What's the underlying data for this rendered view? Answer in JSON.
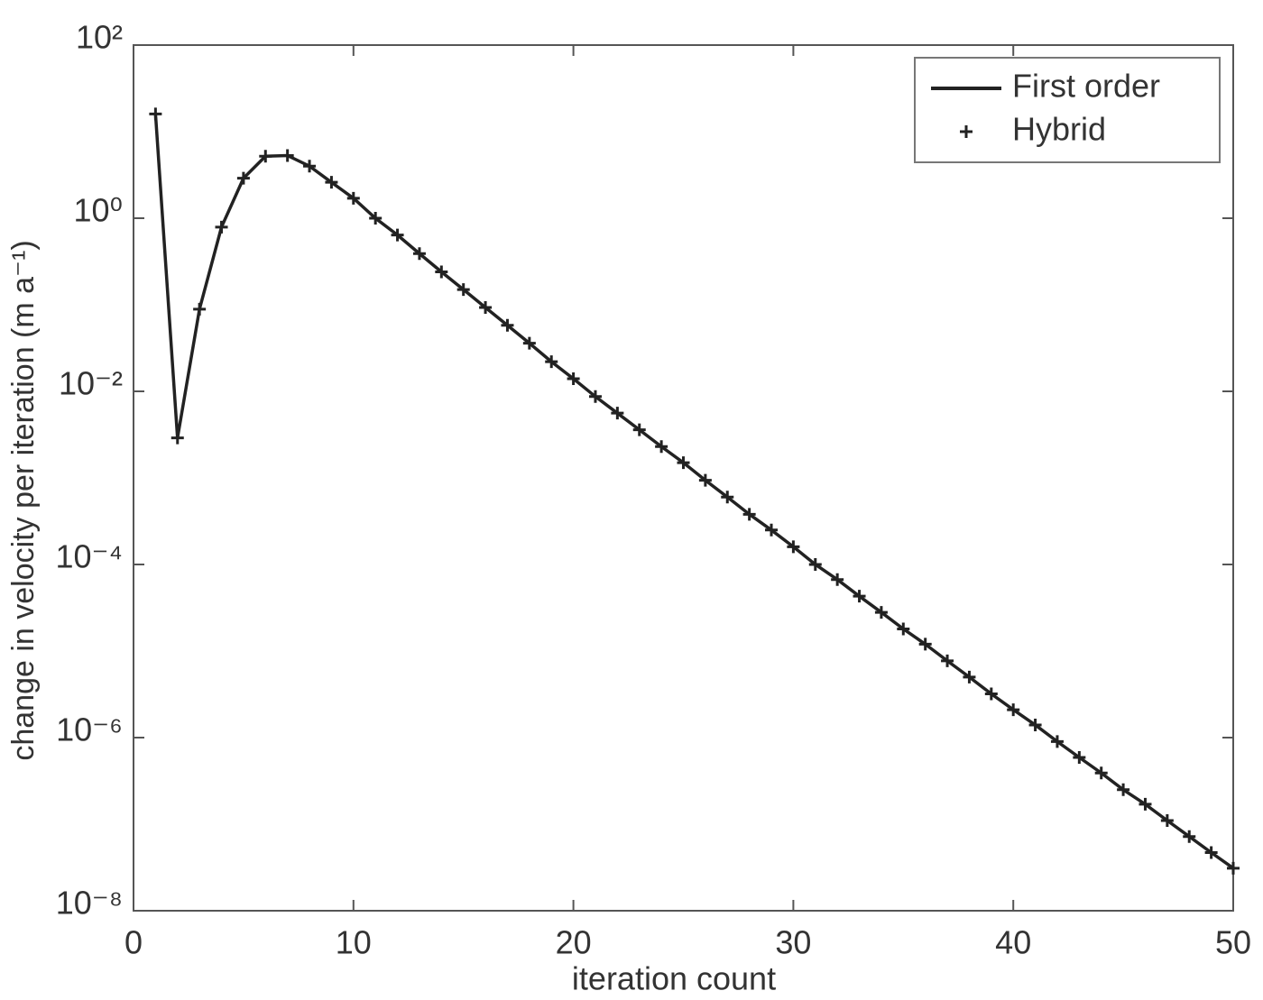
{
  "chart_data": {
    "type": "line",
    "xlabel": "iteration count",
    "ylabel": "change in velocity per iteration (m a⁻¹)",
    "x": [
      1,
      2,
      3,
      4,
      5,
      6,
      7,
      8,
      9,
      10,
      11,
      12,
      13,
      14,
      15,
      16,
      17,
      18,
      19,
      20,
      21,
      22,
      23,
      24,
      25,
      26,
      27,
      28,
      29,
      30,
      31,
      32,
      33,
      34,
      35,
      36,
      37,
      38,
      39,
      40,
      41,
      42,
      43,
      44,
      45,
      46,
      47,
      48,
      49,
      50
    ],
    "series": [
      {
        "name": "First order",
        "color": "#222222",
        "mode": "line",
        "values": [
          16,
          0.0029,
          0.089,
          0.79,
          2.9,
          5.2,
          5.3,
          4.0,
          2.6,
          1.7,
          1.0,
          0.64,
          0.39,
          0.24,
          0.15,
          0.093,
          0.058,
          0.036,
          0.022,
          0.014,
          0.0087,
          0.0056,
          0.0036,
          0.0023,
          0.0015,
          0.00094,
          0.0006,
          0.00038,
          0.00025,
          0.00016,
          0.0001,
          6.7e-05,
          4.3e-05,
          2.8e-05,
          1.8e-05,
          1.2e-05,
          7.7e-06,
          5e-06,
          3.2e-06,
          2.1e-06,
          1.4e-06,
          9e-07,
          5.9e-07,
          3.9e-07,
          2.5e-07,
          1.7e-07,
          1.1e-07,
          7.2e-08,
          4.7e-08,
          3.1e-08
        ]
      },
      {
        "name": "Hybrid",
        "color": "#222222",
        "mode": "markers",
        "values": [
          16,
          0.0029,
          0.089,
          0.79,
          2.9,
          5.2,
          5.3,
          4.0,
          2.6,
          1.7,
          1.0,
          0.64,
          0.39,
          0.24,
          0.15,
          0.093,
          0.058,
          0.036,
          0.022,
          0.014,
          0.0087,
          0.0056,
          0.0036,
          0.0023,
          0.0015,
          0.00094,
          0.0006,
          0.00038,
          0.00025,
          0.00016,
          0.0001,
          6.7e-05,
          4.3e-05,
          2.8e-05,
          1.8e-05,
          1.2e-05,
          7.7e-06,
          5e-06,
          3.2e-06,
          2.1e-06,
          1.4e-06,
          9e-07,
          5.9e-07,
          3.9e-07,
          2.5e-07,
          1.7e-07,
          1.1e-07,
          7.2e-08,
          4.7e-08,
          3.1e-08
        ]
      }
    ],
    "xlim": [
      0,
      50
    ],
    "xticks": [
      0,
      10,
      20,
      30,
      40,
      50
    ],
    "ylim": [
      1e-08,
      100
    ],
    "ylog": true,
    "yticks": [
      {
        "value": 1e-08,
        "label": "10⁻⁸"
      },
      {
        "value": 1e-06,
        "label": "10⁻⁶"
      },
      {
        "value": 0.0001,
        "label": "10⁻⁴"
      },
      {
        "value": 0.01,
        "label": "10⁻²"
      },
      {
        "value": 1,
        "label": "10⁰"
      },
      {
        "value": 100,
        "label": "10²"
      }
    ],
    "grid": false,
    "legend": "upper right"
  }
}
